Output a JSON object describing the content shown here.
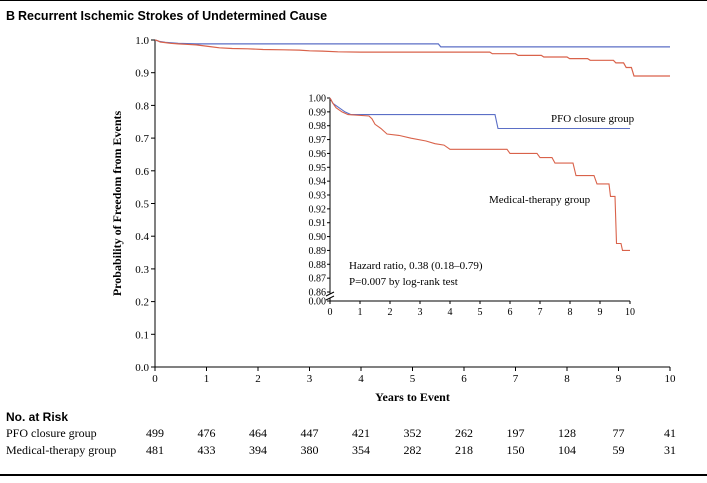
{
  "figure": {
    "panel_letter": "B",
    "title": "Recurrent Ischemic Strokes of Undetermined Cause"
  },
  "chart_data": {
    "type": "line",
    "xlabel": "Years to Event",
    "ylabel": "Probability of Freedom from Events",
    "xlim": [
      0,
      10
    ],
    "ylim": [
      0.0,
      1.0
    ],
    "x_ticks": [
      "0",
      "1",
      "2",
      "3",
      "4",
      "5",
      "6",
      "7",
      "8",
      "9",
      "10"
    ],
    "y_ticks": [
      "0.0",
      "0.1",
      "0.2",
      "0.3",
      "0.4",
      "0.5",
      "0.6",
      "0.7",
      "0.8",
      "0.9",
      "1.0"
    ],
    "series": [
      {
        "name": "PFO closure group",
        "color": "#5b6fc6",
        "points": [
          [
            0,
            1.0
          ],
          [
            0.08,
            0.996
          ],
          [
            0.2,
            0.993
          ],
          [
            0.45,
            0.99
          ],
          [
            0.8,
            0.988
          ],
          [
            5.5,
            0.988
          ],
          [
            5.55,
            0.979
          ],
          [
            9.2,
            0.979
          ],
          [
            10,
            0.979
          ]
        ]
      },
      {
        "name": "Medical-therapy group",
        "color": "#d9624a",
        "points": [
          [
            0,
            1.0
          ],
          [
            0.05,
            0.998
          ],
          [
            0.1,
            0.994
          ],
          [
            0.2,
            0.992
          ],
          [
            0.3,
            0.99
          ],
          [
            0.45,
            0.988
          ],
          [
            0.6,
            0.987
          ],
          [
            0.8,
            0.985
          ],
          [
            1.05,
            0.98
          ],
          [
            1.25,
            0.976
          ],
          [
            1.5,
            0.974
          ],
          [
            1.8,
            0.973
          ],
          [
            2.1,
            0.971
          ],
          [
            2.5,
            0.97
          ],
          [
            2.8,
            0.969
          ],
          [
            3.0,
            0.967
          ],
          [
            3.25,
            0.966
          ],
          [
            3.55,
            0.964
          ],
          [
            4.0,
            0.963
          ],
          [
            6.5,
            0.963
          ],
          [
            6.55,
            0.958
          ],
          [
            7.0,
            0.958
          ],
          [
            7.05,
            0.953
          ],
          [
            7.5,
            0.953
          ],
          [
            7.55,
            0.948
          ],
          [
            8.0,
            0.948
          ],
          [
            8.05,
            0.943
          ],
          [
            8.4,
            0.943
          ],
          [
            8.45,
            0.938
          ],
          [
            8.9,
            0.938
          ],
          [
            8.95,
            0.93
          ],
          [
            9.1,
            0.93
          ],
          [
            9.15,
            0.916
          ],
          [
            9.25,
            0.916
          ],
          [
            9.3,
            0.89
          ],
          [
            10,
            0.89
          ]
        ]
      }
    ]
  },
  "inset": {
    "xlim": [
      0,
      10
    ],
    "ylim_main": [
      0.86,
      1.0
    ],
    "axis_break": true,
    "x_ticks": [
      "0",
      "1",
      "2",
      "3",
      "4",
      "5",
      "6",
      "7",
      "8",
      "9",
      "10"
    ],
    "y_ticks": [
      "0.86",
      "0.87",
      "0.88",
      "0.89",
      "0.90",
      "0.91",
      "0.92",
      "0.93",
      "0.94",
      "0.95",
      "0.96",
      "0.97",
      "0.98",
      "0.99",
      "1.00"
    ],
    "y_zero_label": "0.00",
    "labels": {
      "pfo": "PFO closure group",
      "medical": "Medical-therapy group"
    },
    "annotation": {
      "hazard_ratio": "Hazard ratio, 0.38 (0.18–0.79)",
      "p_value": "P=0.007 by log-rank test"
    },
    "series": {
      "pfo": [
        [
          0,
          1.0
        ],
        [
          0.1,
          0.996
        ],
        [
          0.3,
          0.993
        ],
        [
          0.5,
          0.99
        ],
        [
          0.7,
          0.988
        ],
        [
          5.5,
          0.988
        ],
        [
          5.6,
          0.978
        ],
        [
          10,
          0.978
        ]
      ],
      "medical": [
        [
          0,
          1.0
        ],
        [
          0.1,
          0.996
        ],
        [
          0.2,
          0.993
        ],
        [
          0.4,
          0.99
        ],
        [
          0.6,
          0.988
        ],
        [
          1.3,
          0.987
        ],
        [
          1.4,
          0.985
        ],
        [
          1.5,
          0.981
        ],
        [
          1.7,
          0.978
        ],
        [
          1.9,
          0.974
        ],
        [
          2.3,
          0.973
        ],
        [
          2.7,
          0.971
        ],
        [
          3.2,
          0.969
        ],
        [
          3.5,
          0.967
        ],
        [
          3.8,
          0.966
        ],
        [
          4.0,
          0.963
        ],
        [
          5.9,
          0.963
        ],
        [
          6.0,
          0.96
        ],
        [
          6.9,
          0.96
        ],
        [
          7.0,
          0.957
        ],
        [
          7.4,
          0.957
        ],
        [
          7.5,
          0.953
        ],
        [
          8.1,
          0.953
        ],
        [
          8.2,
          0.944
        ],
        [
          8.8,
          0.944
        ],
        [
          8.9,
          0.938
        ],
        [
          9.3,
          0.938
        ],
        [
          9.35,
          0.929
        ],
        [
          9.5,
          0.929
        ],
        [
          9.55,
          0.895
        ],
        [
          9.7,
          0.895
        ],
        [
          9.75,
          0.89
        ],
        [
          10,
          0.89
        ]
      ]
    }
  },
  "risk_table": {
    "heading": "No. at Risk",
    "rows": [
      {
        "label": "PFO closure group",
        "values": [
          "499",
          "476",
          "464",
          "447",
          "421",
          "352",
          "262",
          "197",
          "128",
          "77",
          "41"
        ]
      },
      {
        "label": "Medical-therapy group",
        "values": [
          "481",
          "433",
          "394",
          "380",
          "354",
          "282",
          "218",
          "150",
          "104",
          "59",
          "31"
        ]
      }
    ]
  }
}
